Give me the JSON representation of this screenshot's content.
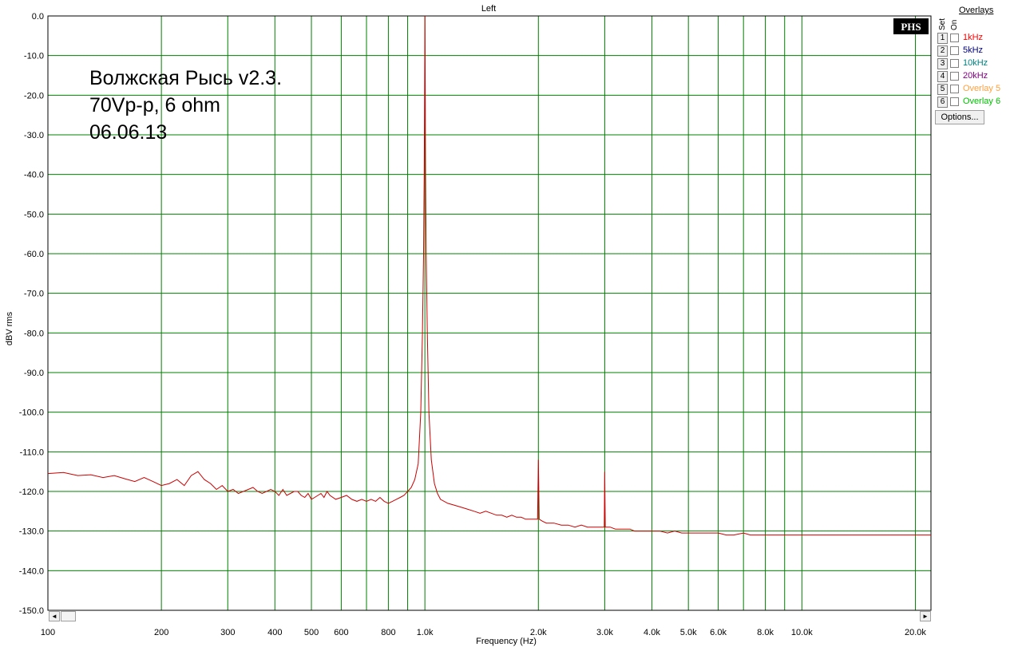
{
  "chart_data": {
    "type": "line",
    "title": "Left",
    "xlabel": "Frequency (Hz)",
    "ylabel": "dBV rms",
    "x_scale": "log",
    "xlim": [
      100,
      22000
    ],
    "ylim": [
      -150,
      0
    ],
    "grid": true,
    "x_ticks": [
      100,
      200,
      300,
      400,
      500,
      600,
      800,
      1000,
      2000,
      3000,
      4000,
      5000,
      6000,
      8000,
      10000,
      20000
    ],
    "x_tick_labels": [
      "100",
      "200",
      "300",
      "400",
      "500",
      "600",
      "800",
      "1.0k",
      "2.0k",
      "3.0k",
      "4.0k",
      "5.0k",
      "6.0k",
      "8.0k",
      "10.0k",
      "20.0k"
    ],
    "x_grid_minor": [
      700,
      900,
      7000,
      9000
    ],
    "y_ticks": [
      0,
      -10,
      -20,
      -30,
      -40,
      -50,
      -60,
      -70,
      -80,
      -90,
      -100,
      -110,
      -120,
      -130,
      -140,
      -150
    ],
    "y_tick_labels": [
      "0.0",
      "-10.0",
      "-20.0",
      "-30.0",
      "-40.0",
      "-50.0",
      "-60.0",
      "-70.0",
      "-80.0",
      "-90.0",
      "-100.0",
      "-110.0",
      "-120.0",
      "-130.0",
      "-140.0",
      "-150.0"
    ],
    "annotation_lines": [
      "Волжская Рысь v2.3.",
      "70Vp-p, 6 ohm",
      "06.06.13"
    ],
    "series": [
      {
        "color": "#cc0000",
        "points": [
          [
            100,
            -115.5
          ],
          [
            110,
            -115.2
          ],
          [
            120,
            -116
          ],
          [
            130,
            -115.8
          ],
          [
            140,
            -116.5
          ],
          [
            150,
            -116
          ],
          [
            160,
            -116.8
          ],
          [
            170,
            -117.5
          ],
          [
            180,
            -116.5
          ],
          [
            190,
            -117.5
          ],
          [
            200,
            -118.5
          ],
          [
            210,
            -118
          ],
          [
            220,
            -117
          ],
          [
            230,
            -118.5
          ],
          [
            240,
            -116
          ],
          [
            250,
            -115
          ],
          [
            260,
            -117
          ],
          [
            270,
            -118
          ],
          [
            280,
            -119.5
          ],
          [
            290,
            -118.5
          ],
          [
            300,
            -120
          ],
          [
            310,
            -119.5
          ],
          [
            320,
            -120.5
          ],
          [
            330,
            -120
          ],
          [
            340,
            -119.5
          ],
          [
            350,
            -119
          ],
          [
            360,
            -120
          ],
          [
            370,
            -120.5
          ],
          [
            380,
            -120
          ],
          [
            390,
            -119.5
          ],
          [
            400,
            -120
          ],
          [
            410,
            -121
          ],
          [
            420,
            -119.5
          ],
          [
            430,
            -121
          ],
          [
            440,
            -120.5
          ],
          [
            450,
            -120
          ],
          [
            460,
            -120
          ],
          [
            470,
            -121
          ],
          [
            480,
            -121.5
          ],
          [
            490,
            -120.5
          ],
          [
            500,
            -122
          ],
          [
            510,
            -121.5
          ],
          [
            520,
            -121
          ],
          [
            530,
            -120.5
          ],
          [
            540,
            -121.5
          ],
          [
            550,
            -120
          ],
          [
            560,
            -121
          ],
          [
            580,
            -122
          ],
          [
            600,
            -121.5
          ],
          [
            620,
            -121
          ],
          [
            640,
            -122
          ],
          [
            660,
            -122.5
          ],
          [
            680,
            -122
          ],
          [
            700,
            -122.5
          ],
          [
            720,
            -122
          ],
          [
            740,
            -122.5
          ],
          [
            760,
            -121.5
          ],
          [
            780,
            -122.5
          ],
          [
            800,
            -123
          ],
          [
            820,
            -122.5
          ],
          [
            840,
            -122
          ],
          [
            860,
            -121.5
          ],
          [
            880,
            -121
          ],
          [
            900,
            -120
          ],
          [
            920,
            -119
          ],
          [
            940,
            -117
          ],
          [
            960,
            -113
          ],
          [
            975,
            -100
          ],
          [
            985,
            -80
          ],
          [
            992,
            -60
          ],
          [
            996,
            -40
          ],
          [
            998,
            -20
          ],
          [
            1000,
            0
          ],
          [
            1002,
            -20
          ],
          [
            1004,
            -40
          ],
          [
            1008,
            -60
          ],
          [
            1015,
            -80
          ],
          [
            1025,
            -100
          ],
          [
            1040,
            -112
          ],
          [
            1060,
            -118
          ],
          [
            1080,
            -120.5
          ],
          [
            1100,
            -122
          ],
          [
            1150,
            -123
          ],
          [
            1200,
            -123.5
          ],
          [
            1250,
            -124
          ],
          [
            1300,
            -124.5
          ],
          [
            1350,
            -125
          ],
          [
            1400,
            -125.5
          ],
          [
            1450,
            -125
          ],
          [
            1500,
            -125.5
          ],
          [
            1550,
            -126
          ],
          [
            1600,
            -126
          ],
          [
            1650,
            -126.5
          ],
          [
            1700,
            -126
          ],
          [
            1750,
            -126.5
          ],
          [
            1800,
            -126.5
          ],
          [
            1850,
            -127
          ],
          [
            1900,
            -127
          ],
          [
            1950,
            -127
          ],
          [
            1990,
            -127
          ],
          [
            2000,
            -112
          ],
          [
            2010,
            -127
          ],
          [
            2050,
            -127.5
          ],
          [
            2100,
            -128
          ],
          [
            2200,
            -128
          ],
          [
            2300,
            -128.5
          ],
          [
            2400,
            -128.5
          ],
          [
            2500,
            -129
          ],
          [
            2600,
            -128.5
          ],
          [
            2700,
            -129
          ],
          [
            2800,
            -129
          ],
          [
            2900,
            -129
          ],
          [
            2990,
            -129
          ],
          [
            3000,
            -115
          ],
          [
            3010,
            -129
          ],
          [
            3100,
            -129
          ],
          [
            3200,
            -129.5
          ],
          [
            3300,
            -129.5
          ],
          [
            3400,
            -129.5
          ],
          [
            3500,
            -129.5
          ],
          [
            3600,
            -130
          ],
          [
            3700,
            -130
          ],
          [
            3800,
            -130
          ],
          [
            3900,
            -130
          ],
          [
            4000,
            -130
          ],
          [
            4200,
            -130
          ],
          [
            4400,
            -130.5
          ],
          [
            4600,
            -130
          ],
          [
            4800,
            -130.5
          ],
          [
            5000,
            -130.5
          ],
          [
            5200,
            -130.5
          ],
          [
            5500,
            -130.5
          ],
          [
            5800,
            -130.5
          ],
          [
            6000,
            -130.5
          ],
          [
            6300,
            -131
          ],
          [
            6600,
            -131
          ],
          [
            7000,
            -130.5
          ],
          [
            7300,
            -131
          ],
          [
            7600,
            -131
          ],
          [
            8000,
            -131
          ],
          [
            8500,
            -131
          ],
          [
            9000,
            -131
          ],
          [
            9500,
            -131
          ],
          [
            10000,
            -131
          ],
          [
            11000,
            -131
          ],
          [
            12000,
            -131
          ],
          [
            13000,
            -131
          ],
          [
            14000,
            -131
          ],
          [
            15000,
            -131
          ],
          [
            16000,
            -131
          ],
          [
            17000,
            -131
          ],
          [
            18000,
            -131
          ],
          [
            19000,
            -131
          ],
          [
            20000,
            -131
          ],
          [
            21000,
            -131
          ],
          [
            22000,
            -131
          ]
        ]
      }
    ]
  },
  "logo": "PHS",
  "overlays": {
    "title": "Overlays",
    "header_set": "Set",
    "header_on": "On",
    "items": [
      {
        "num": "1",
        "label": "1kHz",
        "color": "#ff0000"
      },
      {
        "num": "2",
        "label": "5kHz",
        "color": "#000080"
      },
      {
        "num": "3",
        "label": "10kHz",
        "color": "#008080"
      },
      {
        "num": "4",
        "label": "20kHz",
        "color": "#800080"
      },
      {
        "num": "5",
        "label": "Overlay 5",
        "color": "#ffa040"
      },
      {
        "num": "6",
        "label": "Overlay 6",
        "color": "#00c000"
      }
    ],
    "options_label": "Options..."
  },
  "scrollbar": {
    "left_arrow": "◄",
    "right_arrow": "►"
  },
  "colors": {
    "grid": "#008000",
    "trace": "#cc0000",
    "annotation": "#000000"
  }
}
